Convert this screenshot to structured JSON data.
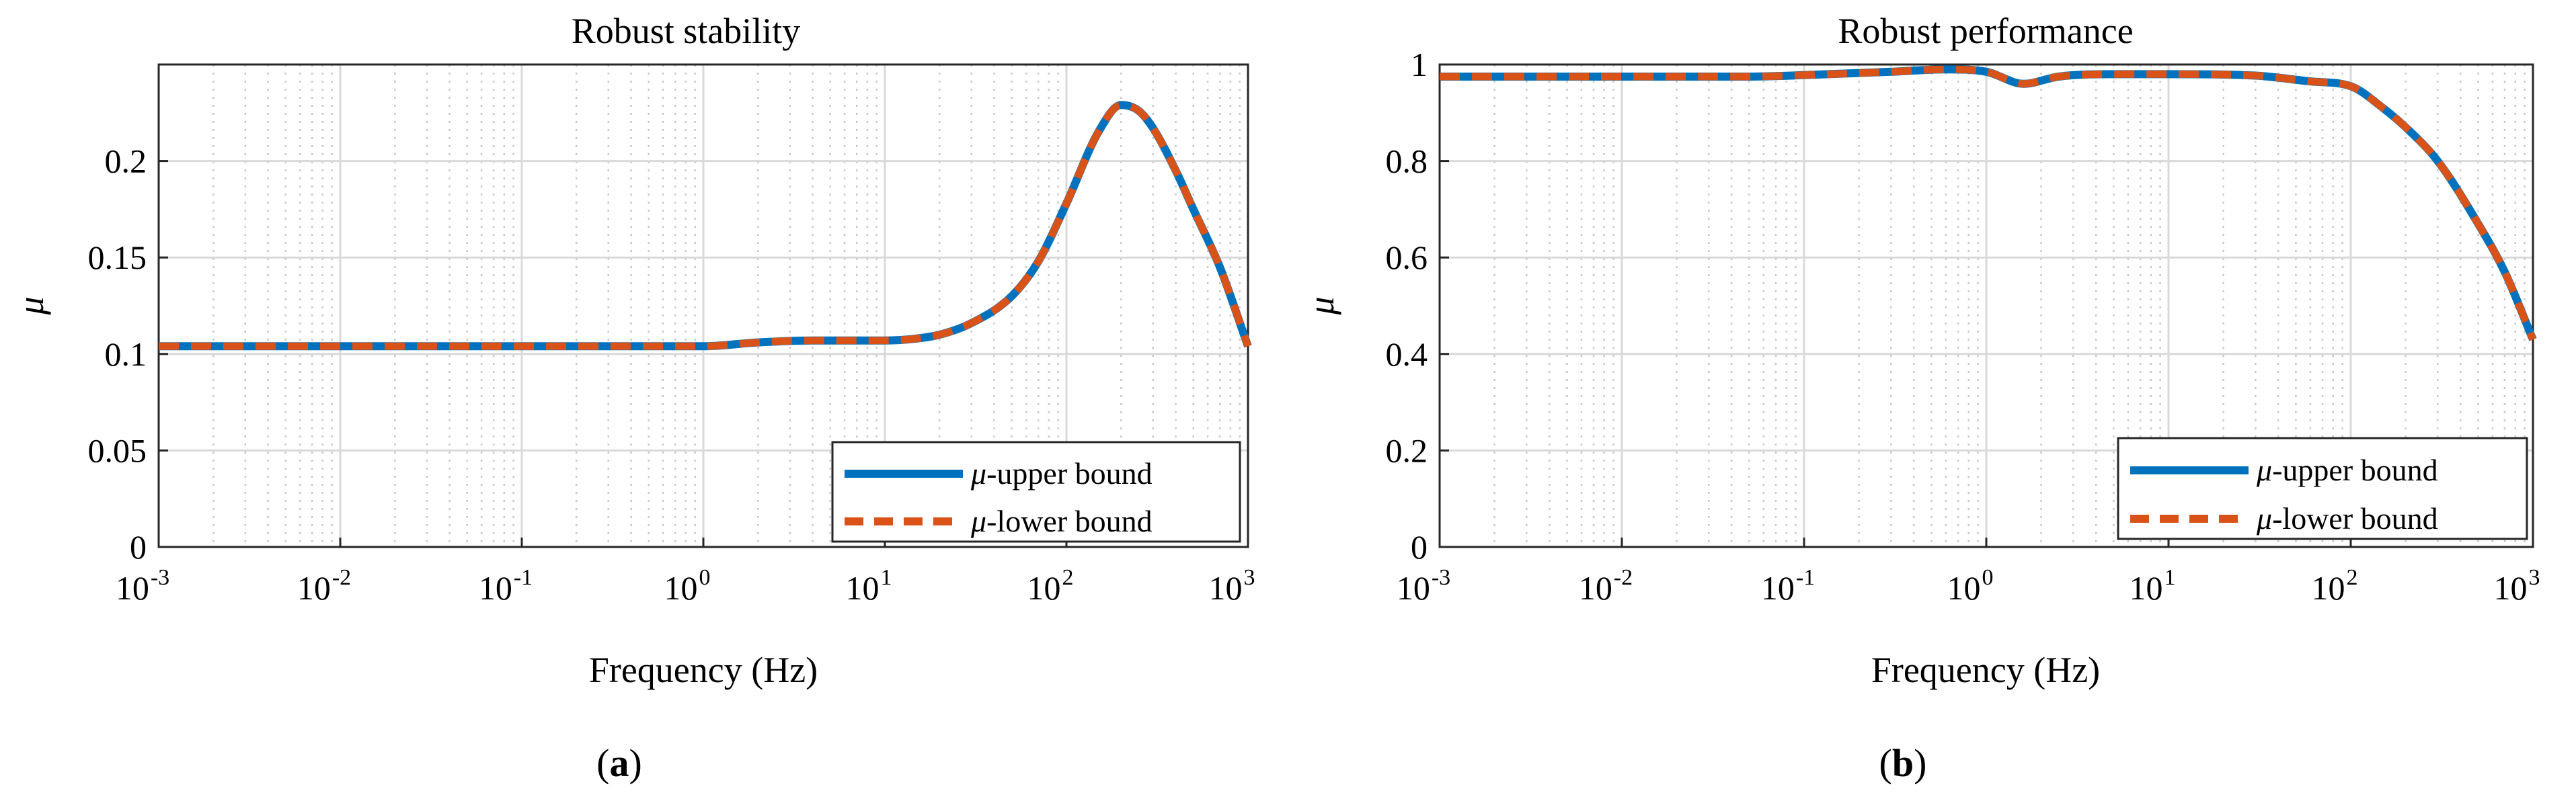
{
  "figure": {
    "panel_labels": [
      {
        "open": "(",
        "letter": "a",
        "close": ")"
      },
      {
        "open": "(",
        "letter": "b",
        "close": ")"
      }
    ]
  },
  "colors": {
    "upper": "#0072BD",
    "lower": "#D95319"
  },
  "chart_data": [
    {
      "type": "line",
      "title": "Robust stability",
      "xlabel": "Frequency (Hz)",
      "ylabel": "μ",
      "xscale": "log",
      "xlim": [
        0.001,
        1000
      ],
      "ylim": [
        0,
        0.25
      ],
      "xticks": [
        {
          "base": "10",
          "exp": "-3",
          "value": 0.001
        },
        {
          "base": "10",
          "exp": "-2",
          "value": 0.01
        },
        {
          "base": "10",
          "exp": "-1",
          "value": 0.1
        },
        {
          "base": "10",
          "exp": "0",
          "value": 1
        },
        {
          "base": "10",
          "exp": "1",
          "value": 10
        },
        {
          "base": "10",
          "exp": "2",
          "value": 100
        },
        {
          "base": "10",
          "exp": "3",
          "value": 1000
        }
      ],
      "yticks": [
        {
          "label": "0",
          "value": 0
        },
        {
          "label": "0.05",
          "value": 0.05
        },
        {
          "label": "0.1",
          "value": 0.1
        },
        {
          "label": "0.15",
          "value": 0.15
        },
        {
          "label": "0.2",
          "value": 0.2
        }
      ],
      "legend": {
        "position": "bottom-right",
        "entries": [
          {
            "mu": "μ",
            "text": "-upper bound",
            "style": "solid"
          },
          {
            "mu": "μ",
            "text": "-lower bound",
            "style": "dashed"
          }
        ]
      },
      "x": [
        0.001,
        0.01,
        0.1,
        0.5,
        1,
        2,
        4,
        10,
        15,
        20,
        30,
        50,
        70,
        100,
        150,
        200,
        250,
        300,
        400,
        500,
        700,
        1000
      ],
      "series": [
        {
          "name": "μ-upper bound",
          "values": [
            0.104,
            0.104,
            0.104,
            0.104,
            0.104,
            0.106,
            0.107,
            0.107,
            0.108,
            0.11,
            0.116,
            0.13,
            0.148,
            0.178,
            0.215,
            0.229,
            0.226,
            0.217,
            0.195,
            0.175,
            0.145,
            0.104
          ]
        },
        {
          "name": "μ-lower bound",
          "values": [
            0.104,
            0.104,
            0.104,
            0.104,
            0.104,
            0.106,
            0.107,
            0.107,
            0.108,
            0.11,
            0.116,
            0.13,
            0.148,
            0.178,
            0.215,
            0.229,
            0.226,
            0.217,
            0.195,
            0.175,
            0.145,
            0.104
          ]
        }
      ]
    },
    {
      "type": "line",
      "title": "Robust performance",
      "xlabel": "Frequency (Hz)",
      "ylabel": "μ",
      "xscale": "log",
      "xlim": [
        0.001,
        1000
      ],
      "ylim": [
        0,
        1
      ],
      "xticks": [
        {
          "base": "10",
          "exp": "-3",
          "value": 0.001
        },
        {
          "base": "10",
          "exp": "-2",
          "value": 0.01
        },
        {
          "base": "10",
          "exp": "-1",
          "value": 0.1
        },
        {
          "base": "10",
          "exp": "0",
          "value": 1
        },
        {
          "base": "10",
          "exp": "1",
          "value": 10
        },
        {
          "base": "10",
          "exp": "2",
          "value": 100
        },
        {
          "base": "10",
          "exp": "3",
          "value": 1000
        }
      ],
      "yticks": [
        {
          "label": "0",
          "value": 0
        },
        {
          "label": "0.2",
          "value": 0.2
        },
        {
          "label": "0.4",
          "value": 0.4
        },
        {
          "label": "0.6",
          "value": 0.6
        },
        {
          "label": "0.8",
          "value": 0.8
        },
        {
          "label": "1",
          "value": 1
        }
      ],
      "legend": {
        "position": "bottom-right",
        "entries": [
          {
            "mu": "μ",
            "text": "-upper bound",
            "style": "solid"
          },
          {
            "mu": "μ",
            "text": "-lower bound",
            "style": "dashed"
          }
        ]
      },
      "x": [
        0.001,
        0.01,
        0.05,
        0.1,
        0.3,
        0.6,
        1,
        1.6,
        2.5,
        5,
        10,
        30,
        60,
        100,
        150,
        200,
        300,
        500,
        700,
        1000
      ],
      "series": [
        {
          "name": "μ-upper bound",
          "values": [
            0.975,
            0.975,
            0.975,
            0.978,
            0.985,
            0.99,
            0.985,
            0.96,
            0.975,
            0.98,
            0.98,
            0.977,
            0.965,
            0.955,
            0.91,
            0.87,
            0.8,
            0.67,
            0.57,
            0.43
          ]
        },
        {
          "name": "μ-lower bound",
          "values": [
            0.975,
            0.975,
            0.975,
            0.978,
            0.985,
            0.99,
            0.985,
            0.96,
            0.975,
            0.98,
            0.98,
            0.977,
            0.965,
            0.955,
            0.91,
            0.87,
            0.8,
            0.67,
            0.57,
            0.43
          ]
        }
      ]
    }
  ]
}
